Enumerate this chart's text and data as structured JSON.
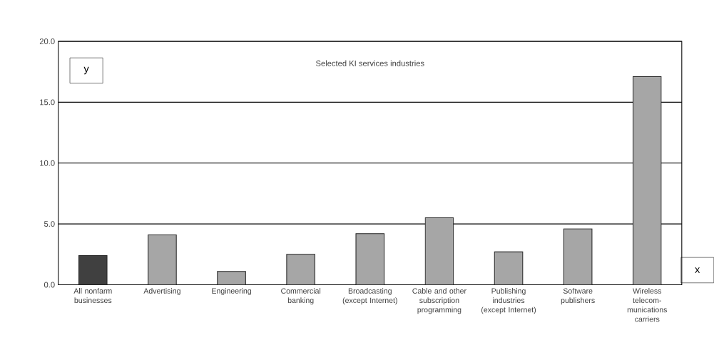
{
  "chart_data": {
    "type": "bar",
    "title": "Selected KI services industries",
    "xlabel": "x",
    "ylabel": "y",
    "categories": [
      "All nonfarm businesses",
      "Advertising",
      "Engineering",
      "Commercial banking",
      "Broadcasting (except Internet)",
      "Cable and other subscription programming",
      "Publishing industries (except Internet)",
      "Software publishers",
      "Wireless telecom-munications carriers"
    ],
    "values": [
      2.4,
      4.1,
      1.1,
      2.5,
      4.2,
      5.5,
      2.7,
      4.6,
      17.1
    ],
    "colors": [
      "#404040",
      "#a6a6a6",
      "#a6a6a6",
      "#a6a6a6",
      "#a6a6a6",
      "#a6a6a6",
      "#a6a6a6",
      "#a6a6a6",
      "#a6a6a6"
    ],
    "ylim": [
      0,
      20
    ],
    "yticks": [
      {
        "value": 0,
        "label": "0.0"
      },
      {
        "value": 5,
        "label": "5.0"
      },
      {
        "value": 10,
        "label": "10.0"
      },
      {
        "value": 15,
        "label": "15.0"
      },
      {
        "value": 20,
        "label": "20.0"
      }
    ],
    "grid": "y"
  }
}
